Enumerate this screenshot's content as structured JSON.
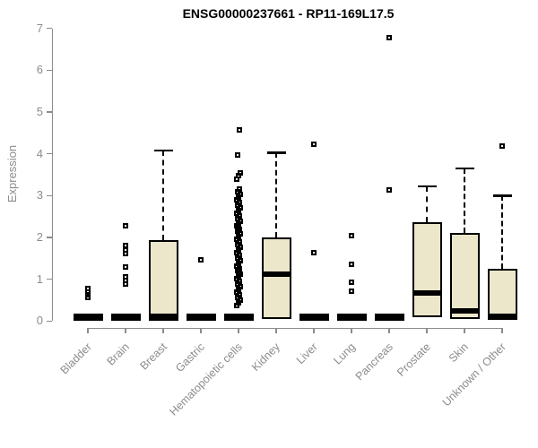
{
  "colors": {
    "box_fill": "#ECE6CB",
    "box_border": "#000000",
    "axis": "#8C8C8C",
    "text_muted": "#8C8C8C",
    "title": "#000000"
  },
  "chart_data": {
    "type": "boxplot",
    "title": "ENSG00000237661 - RP11-169L17.5",
    "ylabel": "Expression",
    "xlabel": "",
    "ylim": [
      0,
      7
    ],
    "yticks": [
      0,
      1,
      2,
      3,
      4,
      5,
      6,
      7
    ],
    "grid": false,
    "categories": [
      "Bladder",
      "Brain",
      "Breast",
      "Gastric",
      "Hematopoietic cells",
      "Kidney",
      "Liver",
      "Lung",
      "Pancreas",
      "Prostate",
      "Skin",
      "Unknown / Other"
    ],
    "series": [
      {
        "name": "Bladder",
        "q1": 0,
        "median": 0.1,
        "q3": 0.18,
        "whisker_low": 0,
        "whisker_high": 0.18,
        "outliers": [
          0.56,
          0.63,
          0.7,
          0.78
        ]
      },
      {
        "name": "Brain",
        "q1": 0,
        "median": 0.1,
        "q3": 0.18,
        "whisker_low": 0,
        "whisker_high": 0.18,
        "outliers": [
          0.88,
          0.97,
          1.06,
          1.29,
          1.62,
          1.71,
          1.8,
          2.28
        ]
      },
      {
        "name": "Breast",
        "q1": 0,
        "median": 0.12,
        "q3": 1.93,
        "whisker_low": 0,
        "whisker_high": 4.08,
        "outliers": []
      },
      {
        "name": "Gastric",
        "q1": 0,
        "median": 0.1,
        "q3": 0.18,
        "whisker_low": 0,
        "whisker_high": 0.18,
        "outliers": [
          1.46
        ]
      },
      {
        "name": "Hematopoietic cells",
        "q1": 0,
        "median": 0.1,
        "q3": 0.18,
        "whisker_low": 0,
        "whisker_high": 0.18,
        "outliers": [
          0.38,
          0.44,
          0.5,
          0.56,
          0.63,
          0.69,
          0.75,
          0.82,
          0.88,
          0.94,
          1.01,
          1.07,
          1.13,
          1.2,
          1.26,
          1.32,
          1.38,
          1.45,
          1.51,
          1.57,
          1.64,
          1.7,
          1.76,
          1.83,
          1.89,
          1.95,
          2.02,
          2.08,
          2.14,
          2.2,
          2.27,
          2.33,
          2.39,
          2.46,
          2.52,
          2.58,
          2.65,
          2.71,
          2.77,
          2.83,
          2.9,
          2.96,
          3.02,
          3.09,
          3.15,
          3.4,
          3.47,
          3.55,
          3.98,
          4.57
        ]
      },
      {
        "name": "Kidney",
        "q1": 0.05,
        "median": 1.12,
        "q3": 2.0,
        "whisker_low": 0,
        "whisker_high": 4.03,
        "outliers": []
      },
      {
        "name": "Liver",
        "q1": 0,
        "median": 0.1,
        "q3": 0.18,
        "whisker_low": 0,
        "whisker_high": 0.18,
        "outliers": [
          1.63,
          4.22
        ]
      },
      {
        "name": "Lung",
        "q1": 0,
        "median": 0.1,
        "q3": 0.18,
        "whisker_low": 0,
        "whisker_high": 0.18,
        "outliers": [
          0.71,
          0.93,
          1.35,
          2.04
        ]
      },
      {
        "name": "Pancreas",
        "q1": 0,
        "median": 0.1,
        "q3": 0.18,
        "whisker_low": 0,
        "whisker_high": 0.18,
        "outliers": [
          3.14,
          6.78
        ]
      },
      {
        "name": "Prostate",
        "q1": 0.1,
        "median": 0.68,
        "q3": 2.36,
        "whisker_low": 0,
        "whisker_high": 3.22,
        "outliers": []
      },
      {
        "name": "Skin",
        "q1": 0.04,
        "median": 0.25,
        "q3": 2.1,
        "whisker_low": 0,
        "whisker_high": 3.65,
        "outliers": []
      },
      {
        "name": "Unknown / Other",
        "q1": 0.02,
        "median": 0.12,
        "q3": 1.25,
        "whisker_low": 0,
        "whisker_high": 3.0,
        "outliers": [
          4.19
        ]
      }
    ]
  }
}
